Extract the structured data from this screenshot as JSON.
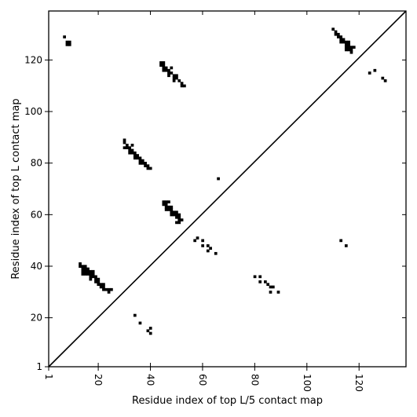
{
  "chart_data": {
    "type": "scatter",
    "title": "",
    "xlabel": "Residue index of top L/5 contact map",
    "ylabel": "Residue index of top L contact map",
    "xlim": [
      1,
      138
    ],
    "ylim": [
      1,
      139
    ],
    "x_ticks": [
      1,
      20,
      40,
      60,
      80,
      100,
      120
    ],
    "y_ticks": [
      1,
      20,
      40,
      60,
      80,
      100,
      120
    ],
    "x_tick_rotation": 90,
    "grid": false,
    "diagonal_line": true,
    "marker": "square",
    "marker_color": "#000000",
    "series": [
      {
        "name": "",
        "points": [
          [
            7,
            129
          ],
          [
            8,
            127
          ],
          [
            9,
            127
          ],
          [
            8,
            126
          ],
          [
            9,
            126
          ],
          [
            110,
            132
          ],
          [
            111,
            131
          ],
          [
            112,
            130
          ],
          [
            111,
            130
          ],
          [
            112,
            129
          ],
          [
            113,
            129
          ],
          [
            113,
            128
          ],
          [
            114,
            128
          ],
          [
            114,
            127
          ],
          [
            115,
            127
          ],
          [
            116,
            127
          ],
          [
            113,
            127
          ],
          [
            115,
            126
          ],
          [
            116,
            126
          ],
          [
            115,
            125
          ],
          [
            116,
            125
          ],
          [
            117,
            125
          ],
          [
            118,
            125
          ],
          [
            115,
            124
          ],
          [
            116,
            124
          ],
          [
            117,
            124
          ],
          [
            117,
            123
          ],
          [
            124,
            115
          ],
          [
            126,
            116
          ],
          [
            129,
            113
          ],
          [
            130,
            112
          ],
          [
            44,
            119
          ],
          [
            45,
            119
          ],
          [
            44,
            118
          ],
          [
            45,
            118
          ],
          [
            45,
            117
          ],
          [
            46,
            117
          ],
          [
            48,
            117
          ],
          [
            45,
            116
          ],
          [
            46,
            116
          ],
          [
            47,
            116
          ],
          [
            47,
            115
          ],
          [
            48,
            115
          ],
          [
            47,
            114
          ],
          [
            49,
            114
          ],
          [
            50,
            114
          ],
          [
            49,
            113
          ],
          [
            50,
            113
          ],
          [
            49,
            112
          ],
          [
            51,
            112
          ],
          [
            52,
            111
          ],
          [
            52,
            110
          ],
          [
            53,
            110
          ],
          [
            30,
            89
          ],
          [
            30,
            88
          ],
          [
            31,
            87
          ],
          [
            33,
            87
          ],
          [
            30,
            86
          ],
          [
            31,
            86
          ],
          [
            32,
            86
          ],
          [
            32,
            85
          ],
          [
            33,
            85
          ],
          [
            32,
            84
          ],
          [
            33,
            84
          ],
          [
            34,
            84
          ],
          [
            34,
            83
          ],
          [
            35,
            83
          ],
          [
            34,
            82
          ],
          [
            35,
            82
          ],
          [
            36,
            82
          ],
          [
            36,
            81
          ],
          [
            37,
            81
          ],
          [
            36,
            80
          ],
          [
            37,
            80
          ],
          [
            38,
            80
          ],
          [
            38,
            79
          ],
          [
            39,
            79
          ],
          [
            39,
            78
          ],
          [
            40,
            78
          ],
          [
            66,
            74
          ],
          [
            45,
            65
          ],
          [
            46,
            65
          ],
          [
            47,
            65
          ],
          [
            45,
            64
          ],
          [
            46,
            64
          ],
          [
            46,
            63
          ],
          [
            47,
            63
          ],
          [
            48,
            63
          ],
          [
            46,
            62
          ],
          [
            47,
            62
          ],
          [
            48,
            62
          ],
          [
            48,
            61
          ],
          [
            49,
            61
          ],
          [
            50,
            61
          ],
          [
            48,
            60
          ],
          [
            49,
            60
          ],
          [
            50,
            60
          ],
          [
            51,
            60
          ],
          [
            50,
            59
          ],
          [
            51,
            59
          ],
          [
            51,
            58
          ],
          [
            52,
            58
          ],
          [
            50,
            57
          ],
          [
            51,
            57
          ],
          [
            57,
            50
          ],
          [
            58,
            51
          ],
          [
            60,
            50
          ],
          [
            60,
            48
          ],
          [
            62,
            48
          ],
          [
            62,
            46
          ],
          [
            63,
            47
          ],
          [
            65,
            45
          ],
          [
            113,
            50
          ],
          [
            115,
            48
          ],
          [
            13,
            41
          ],
          [
            13,
            40
          ],
          [
            14,
            40
          ],
          [
            15,
            40
          ],
          [
            14,
            39
          ],
          [
            15,
            39
          ],
          [
            16,
            39
          ],
          [
            14,
            38
          ],
          [
            15,
            38
          ],
          [
            16,
            38
          ],
          [
            17,
            38
          ],
          [
            18,
            38
          ],
          [
            14,
            37
          ],
          [
            15,
            37
          ],
          [
            16,
            37
          ],
          [
            17,
            37
          ],
          [
            18,
            37
          ],
          [
            17,
            36
          ],
          [
            18,
            36
          ],
          [
            19,
            36
          ],
          [
            17,
            35
          ],
          [
            19,
            35
          ],
          [
            20,
            35
          ],
          [
            19,
            34
          ],
          [
            20,
            34
          ],
          [
            20,
            33
          ],
          [
            21,
            33
          ],
          [
            22,
            33
          ],
          [
            21,
            32
          ],
          [
            22,
            32
          ],
          [
            22,
            31
          ],
          [
            23,
            31
          ],
          [
            24,
            31
          ],
          [
            25,
            31
          ],
          [
            24,
            30
          ],
          [
            80,
            36
          ],
          [
            82,
            36
          ],
          [
            82,
            34
          ],
          [
            84,
            34
          ],
          [
            85,
            33
          ],
          [
            86,
            32
          ],
          [
            87,
            32
          ],
          [
            86,
            30
          ],
          [
            89,
            30
          ],
          [
            34,
            21
          ],
          [
            36,
            18
          ],
          [
            39,
            15
          ],
          [
            40,
            16
          ],
          [
            40,
            14
          ]
        ]
      }
    ]
  }
}
